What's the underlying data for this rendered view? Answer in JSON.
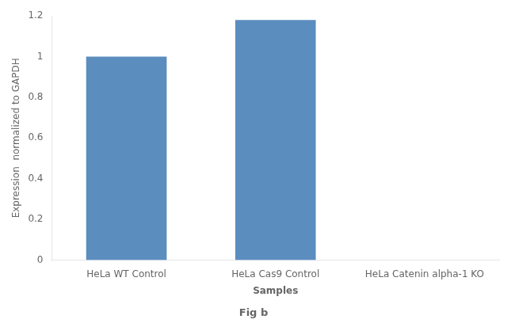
{
  "chart_data": {
    "type": "bar",
    "categories": [
      "HeLa WT Control",
      "HeLa Cas9 Control",
      "HeLa Catenin alpha-1 KO"
    ],
    "values": [
      1.0,
      1.18,
      0.0
    ],
    "color": "#5b8dbf",
    "xlabel": "Samples",
    "ylabel": "Expression  normalized to GAPDH",
    "annotation": "Fig b",
    "ylim": [
      0,
      1.2
    ],
    "yticks": [
      0,
      0.2,
      0.4,
      0.6,
      0.8,
      1,
      1.2
    ],
    "grid": false
  }
}
